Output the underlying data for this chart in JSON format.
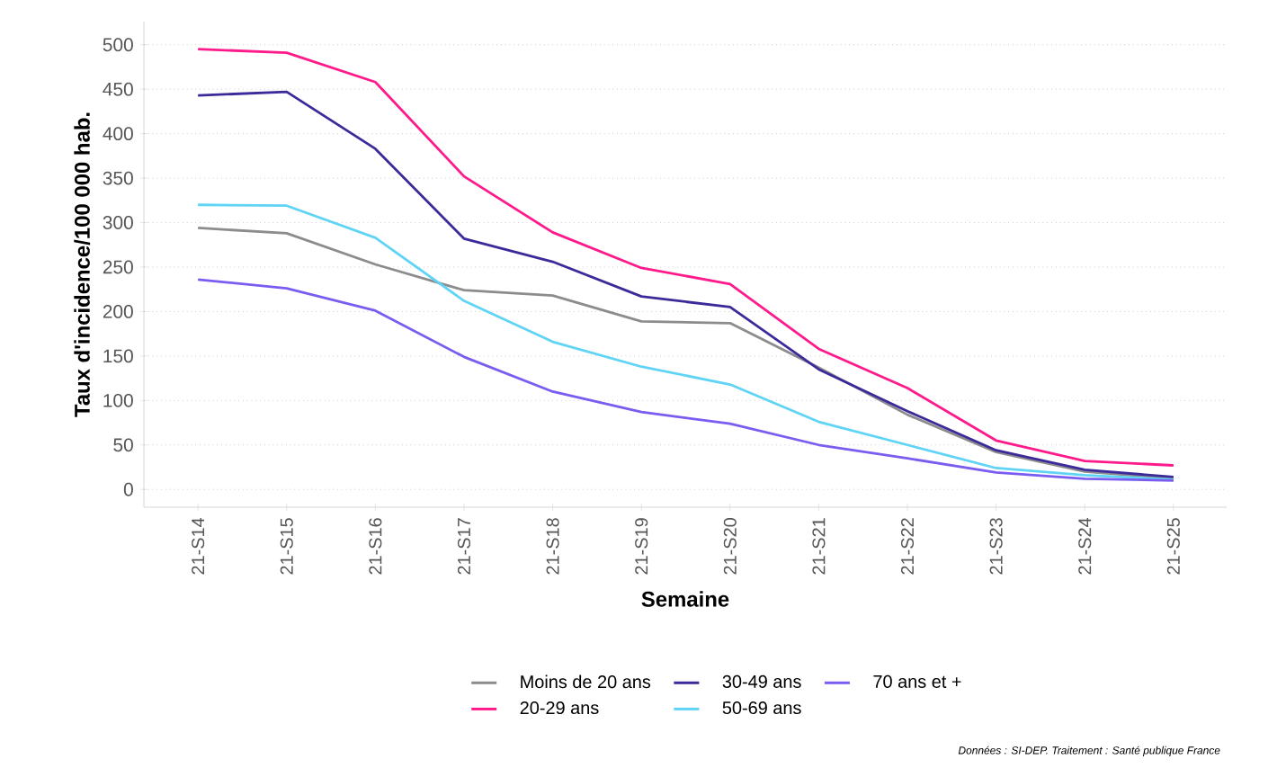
{
  "chart_data": {
    "type": "line",
    "xlabel": "Semaine",
    "ylabel": "Taux d'incidence/100 000 hab.",
    "categories": [
      "21-S14",
      "21-S15",
      "21-S16",
      "21-S17",
      "21-S18",
      "21-S19",
      "21-S20",
      "21-S21",
      "21-S22",
      "21-S23",
      "21-S24",
      "21-S25"
    ],
    "series": [
      {
        "name": "Moins de 20 ans",
        "color": "#8c8c8c",
        "values": [
          294,
          288,
          253,
          224,
          218,
          189,
          187,
          137,
          84,
          42,
          20,
          12
        ]
      },
      {
        "name": "20-29 ans",
        "color": "#ff1a8c",
        "values": [
          495,
          491,
          458,
          352,
          289,
          249,
          231,
          158,
          114,
          55,
          32,
          27
        ]
      },
      {
        "name": "30-49 ans",
        "color": "#3a2a9a",
        "values": [
          443,
          447,
          383,
          282,
          256,
          217,
          205,
          135,
          88,
          44,
          22,
          14
        ]
      },
      {
        "name": "50-69 ans",
        "color": "#5fd4f5",
        "values": [
          320,
          319,
          283,
          212,
          166,
          138,
          118,
          76,
          50,
          24,
          16,
          11
        ]
      },
      {
        "name": "70 ans et +",
        "color": "#7b5cf0",
        "values": [
          236,
          226,
          201,
          149,
          110,
          87,
          74,
          50,
          35,
          19,
          12,
          10
        ]
      }
    ],
    "ylim": [
      -20,
      526
    ],
    "yticks": [
      0,
      50,
      100,
      150,
      200,
      250,
      300,
      350,
      400,
      450,
      500
    ],
    "grid": "y",
    "legend": "bottom",
    "marker": "none",
    "line_style": "solid",
    "annotations": [
      "*Données : SI-DEP. Traitement : Santé publique France*"
    ]
  }
}
